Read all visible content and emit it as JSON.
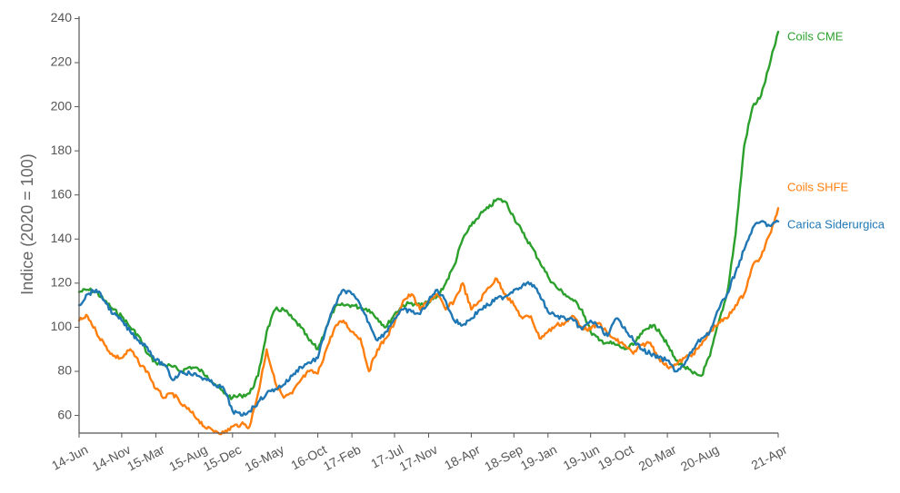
{
  "chart_data": {
    "type": "line",
    "title": "",
    "xlabel": "",
    "ylabel": "Indice (2020 = 100)",
    "ylim": [
      52,
      241
    ],
    "yticks": [
      60,
      80,
      100,
      120,
      140,
      160,
      180,
      200,
      220,
      240
    ],
    "xlim": [
      "2014-06",
      "2021-04"
    ],
    "xticks": [
      {
        "label": "14-Jun",
        "date": "2014-06"
      },
      {
        "label": "14-Nov",
        "date": "2014-11"
      },
      {
        "label": "15-Mar",
        "date": "2015-03"
      },
      {
        "label": "15-Aug",
        "date": "2015-08"
      },
      {
        "label": "15-Dec",
        "date": "2015-12"
      },
      {
        "label": "16-May",
        "date": "2016-05"
      },
      {
        "label": "16-Oct",
        "date": "2016-10"
      },
      {
        "label": "17-Feb",
        "date": "2017-02"
      },
      {
        "label": "17-Jul",
        "date": "2017-07"
      },
      {
        "label": "17-Nov",
        "date": "2017-11"
      },
      {
        "label": "18-Apr",
        "date": "2018-04"
      },
      {
        "label": "18-Sep",
        "date": "2018-09"
      },
      {
        "label": "19-Jan",
        "date": "2019-01"
      },
      {
        "label": "19-Jun",
        "date": "2019-06"
      },
      {
        "label": "19-Oct",
        "date": "2019-10"
      },
      {
        "label": "20-Mar",
        "date": "2020-03"
      },
      {
        "label": "20-Aug",
        "date": "2020-08"
      },
      {
        "label": "21-Apr",
        "date": "2021-04"
      }
    ],
    "grid": false,
    "legend": "end-of-line labels",
    "series": [
      {
        "name": "Coils CME",
        "color": "#2ca02c",
        "points": [
          [
            "2014-06",
            116
          ],
          [
            "2014-07",
            117
          ],
          [
            "2014-08",
            116
          ],
          [
            "2014-09",
            112
          ],
          [
            "2014-10",
            108
          ],
          [
            "2014-11",
            105
          ],
          [
            "2014-12",
            100
          ],
          [
            "2015-01",
            96
          ],
          [
            "2015-02",
            88
          ],
          [
            "2015-03",
            84
          ],
          [
            "2015-04",
            83
          ],
          [
            "2015-05",
            82
          ],
          [
            "2015-06",
            80
          ],
          [
            "2015-07",
            82
          ],
          [
            "2015-08",
            81
          ],
          [
            "2015-09",
            78
          ],
          [
            "2015-10",
            74
          ],
          [
            "2015-11",
            70
          ],
          [
            "2015-12",
            68
          ],
          [
            "2016-01",
            69
          ],
          [
            "2016-02",
            70
          ],
          [
            "2016-03",
            78
          ],
          [
            "2016-04",
            98
          ],
          [
            "2016-05",
            108
          ],
          [
            "2016-06",
            108
          ],
          [
            "2016-07",
            104
          ],
          [
            "2016-08",
            100
          ],
          [
            "2016-09",
            94
          ],
          [
            "2016-10",
            90
          ],
          [
            "2016-11",
            100
          ],
          [
            "2016-12",
            109
          ],
          [
            "2017-01",
            110
          ],
          [
            "2017-02",
            110
          ],
          [
            "2017-03",
            109
          ],
          [
            "2017-04",
            108
          ],
          [
            "2017-05",
            104
          ],
          [
            "2017-06",
            100
          ],
          [
            "2017-07",
            106
          ],
          [
            "2017-08",
            110
          ],
          [
            "2017-09",
            111
          ],
          [
            "2017-10",
            110
          ],
          [
            "2017-11",
            111
          ],
          [
            "2017-12",
            114
          ],
          [
            "2018-01",
            120
          ],
          [
            "2018-02",
            128
          ],
          [
            "2018-03",
            140
          ],
          [
            "2018-04",
            146
          ],
          [
            "2018-05",
            151
          ],
          [
            "2018-06",
            154
          ],
          [
            "2018-07",
            158
          ],
          [
            "2018-08",
            157
          ],
          [
            "2018-09",
            150
          ],
          [
            "2018-10",
            143
          ],
          [
            "2018-11",
            137
          ],
          [
            "2018-12",
            130
          ],
          [
            "2019-01",
            123
          ],
          [
            "2019-02",
            118
          ],
          [
            "2019-03",
            115
          ],
          [
            "2019-04",
            112
          ],
          [
            "2019-05",
            108
          ],
          [
            "2019-06",
            98
          ],
          [
            "2019-07",
            94
          ],
          [
            "2019-08",
            93
          ],
          [
            "2019-09",
            92
          ],
          [
            "2019-10",
            90
          ],
          [
            "2019-11",
            92
          ],
          [
            "2019-12",
            97
          ],
          [
            "2020-01",
            101
          ],
          [
            "2020-02",
            99
          ],
          [
            "2020-03",
            92
          ],
          [
            "2020-04",
            85
          ],
          [
            "2020-05",
            82
          ],
          [
            "2020-06",
            79
          ],
          [
            "2020-07",
            78
          ],
          [
            "2020-08",
            87
          ],
          [
            "2020-09",
            102
          ],
          [
            "2020-10",
            115
          ],
          [
            "2020-11",
            142
          ],
          [
            "2020-12",
            182
          ],
          [
            "2021-01",
            200
          ],
          [
            "2021-02",
            205
          ],
          [
            "2021-03",
            219
          ],
          [
            "2021-04",
            234
          ]
        ]
      },
      {
        "name": "Coils SHFE",
        "color": "#ff7f0e",
        "points": [
          [
            "2014-06",
            103
          ],
          [
            "2014-07",
            105
          ],
          [
            "2014-08",
            98
          ],
          [
            "2014-09",
            92
          ],
          [
            "2014-10",
            87
          ],
          [
            "2014-11",
            86
          ],
          [
            "2014-12",
            90
          ],
          [
            "2015-01",
            84
          ],
          [
            "2015-02",
            80
          ],
          [
            "2015-03",
            72
          ],
          [
            "2015-04",
            68
          ],
          [
            "2015-05",
            70
          ],
          [
            "2015-06",
            65
          ],
          [
            "2015-07",
            62
          ],
          [
            "2015-08",
            58
          ],
          [
            "2015-09",
            54
          ],
          [
            "2015-10",
            53
          ],
          [
            "2015-11",
            52
          ],
          [
            "2015-12",
            55
          ],
          [
            "2016-01",
            56
          ],
          [
            "2016-02",
            55
          ],
          [
            "2016-03",
            70
          ],
          [
            "2016-04",
            90
          ],
          [
            "2016-05",
            75
          ],
          [
            "2016-06",
            68
          ],
          [
            "2016-07",
            70
          ],
          [
            "2016-08",
            76
          ],
          [
            "2016-09",
            80
          ],
          [
            "2016-10",
            79
          ],
          [
            "2016-11",
            90
          ],
          [
            "2016-12",
            100
          ],
          [
            "2017-01",
            103
          ],
          [
            "2017-02",
            98
          ],
          [
            "2017-03",
            95
          ],
          [
            "2017-04",
            80
          ],
          [
            "2017-05",
            90
          ],
          [
            "2017-06",
            95
          ],
          [
            "2017-07",
            102
          ],
          [
            "2017-08",
            112
          ],
          [
            "2017-09",
            115
          ],
          [
            "2017-10",
            108
          ],
          [
            "2017-11",
            112
          ],
          [
            "2017-12",
            115
          ],
          [
            "2018-01",
            108
          ],
          [
            "2018-02",
            112
          ],
          [
            "2018-03",
            120
          ],
          [
            "2018-04",
            108
          ],
          [
            "2018-05",
            112
          ],
          [
            "2018-06",
            118
          ],
          [
            "2018-07",
            122
          ],
          [
            "2018-08",
            115
          ],
          [
            "2018-09",
            110
          ],
          [
            "2018-10",
            104
          ],
          [
            "2018-11",
            105
          ],
          [
            "2018-12",
            95
          ],
          [
            "2019-01",
            98
          ],
          [
            "2019-02",
            101
          ],
          [
            "2019-03",
            102
          ],
          [
            "2019-04",
            105
          ],
          [
            "2019-05",
            100
          ],
          [
            "2019-06",
            99
          ],
          [
            "2019-07",
            102
          ],
          [
            "2019-08",
            97
          ],
          [
            "2019-09",
            94
          ],
          [
            "2019-10",
            92
          ],
          [
            "2019-11",
            88
          ],
          [
            "2019-12",
            92
          ],
          [
            "2020-01",
            93
          ],
          [
            "2020-02",
            86
          ],
          [
            "2020-03",
            82
          ],
          [
            "2020-04",
            83
          ],
          [
            "2020-05",
            86
          ],
          [
            "2020-06",
            88
          ],
          [
            "2020-07",
            92
          ],
          [
            "2020-08",
            98
          ],
          [
            "2020-09",
            102
          ],
          [
            "2020-10",
            104
          ],
          [
            "2020-11",
            110
          ],
          [
            "2020-12",
            115
          ],
          [
            "2021-01",
            128
          ],
          [
            "2021-02",
            132
          ],
          [
            "2021-03",
            142
          ],
          [
            "2021-04",
            154
          ]
        ]
      },
      {
        "name": "Carica Siderurgica",
        "color": "#1f77b4",
        "points": [
          [
            "2014-06",
            110
          ],
          [
            "2014-07",
            115
          ],
          [
            "2014-08",
            117
          ],
          [
            "2014-09",
            112
          ],
          [
            "2014-10",
            106
          ],
          [
            "2014-11",
            103
          ],
          [
            "2014-12",
            98
          ],
          [
            "2015-01",
            94
          ],
          [
            "2015-02",
            91
          ],
          [
            "2015-03",
            85
          ],
          [
            "2015-04",
            83
          ],
          [
            "2015-05",
            76
          ],
          [
            "2015-06",
            80
          ],
          [
            "2015-07",
            79
          ],
          [
            "2015-08",
            78
          ],
          [
            "2015-09",
            76
          ],
          [
            "2015-10",
            74
          ],
          [
            "2015-11",
            72
          ],
          [
            "2015-12",
            62
          ],
          [
            "2016-01",
            60
          ],
          [
            "2016-02",
            62
          ],
          [
            "2016-03",
            66
          ],
          [
            "2016-04",
            70
          ],
          [
            "2016-05",
            72
          ],
          [
            "2016-06",
            74
          ],
          [
            "2016-07",
            78
          ],
          [
            "2016-08",
            82
          ],
          [
            "2016-09",
            84
          ],
          [
            "2016-10",
            86
          ],
          [
            "2016-11",
            100
          ],
          [
            "2016-12",
            110
          ],
          [
            "2017-01",
            117
          ],
          [
            "2017-02",
            115
          ],
          [
            "2017-03",
            110
          ],
          [
            "2017-04",
            102
          ],
          [
            "2017-05",
            94
          ],
          [
            "2017-06",
            98
          ],
          [
            "2017-07",
            104
          ],
          [
            "2017-08",
            108
          ],
          [
            "2017-09",
            107
          ],
          [
            "2017-10",
            106
          ],
          [
            "2017-11",
            112
          ],
          [
            "2017-12",
            117
          ],
          [
            "2018-01",
            112
          ],
          [
            "2018-02",
            103
          ],
          [
            "2018-03",
            101
          ],
          [
            "2018-04",
            104
          ],
          [
            "2018-05",
            108
          ],
          [
            "2018-06",
            110
          ],
          [
            "2018-07",
            113
          ],
          [
            "2018-08",
            114
          ],
          [
            "2018-09",
            117
          ],
          [
            "2018-10",
            119
          ],
          [
            "2018-11",
            120
          ],
          [
            "2018-12",
            115
          ],
          [
            "2019-01",
            107
          ],
          [
            "2019-02",
            105
          ],
          [
            "2019-03",
            104
          ],
          [
            "2019-04",
            103
          ],
          [
            "2019-05",
            99
          ],
          [
            "2019-06",
            103
          ],
          [
            "2019-07",
            100
          ],
          [
            "2019-08",
            96
          ],
          [
            "2019-09",
            104
          ],
          [
            "2019-10",
            100
          ],
          [
            "2019-11",
            94
          ],
          [
            "2019-12",
            90
          ],
          [
            "2020-01",
            88
          ],
          [
            "2020-02",
            86
          ],
          [
            "2020-03",
            85
          ],
          [
            "2020-04",
            80
          ],
          [
            "2020-05",
            83
          ],
          [
            "2020-06",
            90
          ],
          [
            "2020-07",
            95
          ],
          [
            "2020-08",
            98
          ],
          [
            "2020-09",
            108
          ],
          [
            "2020-10",
            115
          ],
          [
            "2020-11",
            125
          ],
          [
            "2020-12",
            135
          ],
          [
            "2021-01",
            145
          ],
          [
            "2021-02",
            148
          ],
          [
            "2021-03",
            146
          ],
          [
            "2021-04",
            148
          ]
        ]
      }
    ]
  }
}
